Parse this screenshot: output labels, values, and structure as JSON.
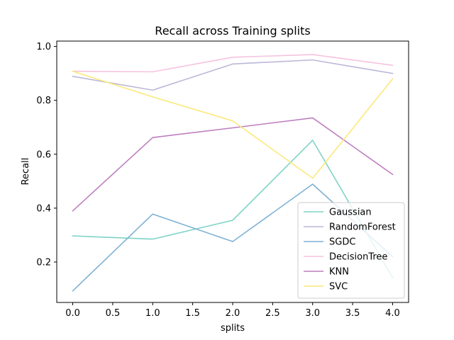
{
  "chart_data": {
    "type": "line",
    "title": "Recall across Training splits",
    "xlabel": "splits",
    "ylabel": "Recall",
    "x": [
      0,
      1,
      2,
      3,
      4
    ],
    "xlim": [
      -0.2,
      4.2
    ],
    "ylim": [
      0.05,
      1.02
    ],
    "xticks": [
      "0.0",
      "0.5",
      "1.0",
      "1.5",
      "2.0",
      "2.5",
      "3.0",
      "3.5",
      "4.0"
    ],
    "xtick_values": [
      0,
      0.5,
      1,
      1.5,
      2,
      2.5,
      3,
      3.5,
      4
    ],
    "yticks": [
      "0.2",
      "0.4",
      "0.6",
      "0.8",
      "1.0"
    ],
    "ytick_values": [
      0.2,
      0.4,
      0.6,
      0.8,
      1.0
    ],
    "grid": false,
    "legend_position": "lower-right",
    "series": [
      {
        "name": "Gaussian",
        "color": "#7fd3c6",
        "values": [
          0.297,
          0.285,
          0.355,
          0.652,
          0.143
        ]
      },
      {
        "name": "RandomForest",
        "color": "#bcb7d8",
        "values": [
          0.889,
          0.838,
          0.935,
          0.95,
          0.9
        ]
      },
      {
        "name": "SGDC",
        "color": "#7fb1d4",
        "values": [
          0.093,
          0.378,
          0.276,
          0.489,
          0.22
        ]
      },
      {
        "name": "DecisionTree",
        "color": "#f6c3df",
        "values": [
          0.908,
          0.906,
          0.96,
          0.97,
          0.93
        ]
      },
      {
        "name": "KNN",
        "color": "#bd7fbf",
        "values": [
          0.39,
          0.662,
          0.698,
          0.735,
          0.525
        ]
      },
      {
        "name": "SVC",
        "color": "#fae97a",
        "values": [
          0.908,
          0.813,
          0.724,
          0.511,
          0.88
        ]
      }
    ]
  }
}
